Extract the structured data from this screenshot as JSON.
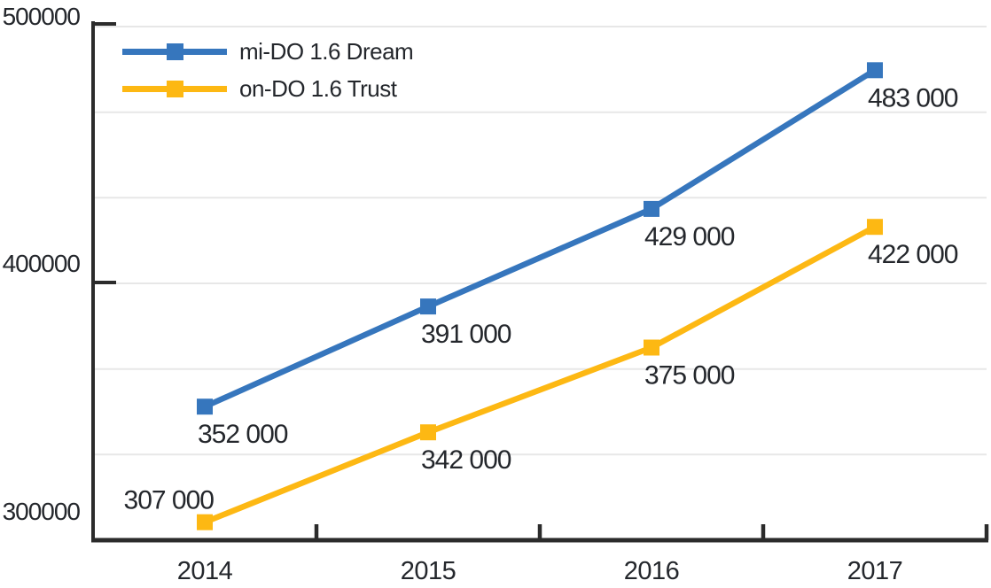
{
  "chart_data": {
    "type": "line",
    "title": "",
    "categories": [
      "2014",
      "2015",
      "2016",
      "2017"
    ],
    "series": [
      {
        "name": "mi-DO 1.6 Dream",
        "color": "#3676bd",
        "values": [
          352000,
          391000,
          429000,
          483000
        ],
        "point_labels": [
          "352 000",
          "391 000",
          "429 000",
          "483 000"
        ],
        "label_positions": [
          "below-right",
          "below-right",
          "below-right",
          "below-right"
        ]
      },
      {
        "name": "on-DO 1.6 Trust",
        "color": "#fdb813",
        "values": [
          307000,
          342000,
          375000,
          422000
        ],
        "point_labels": [
          "307 000",
          "342 000",
          "375 000",
          "422 000"
        ],
        "label_positions": [
          "above-left",
          "below-right",
          "below-right",
          "below-right"
        ]
      }
    ],
    "ylim": [
      300000,
      500000
    ],
    "y_ticks": [
      {
        "value": 500000,
        "label": "500000"
      },
      {
        "value": 400000,
        "label": "400000"
      },
      {
        "value": 300000,
        "label": "300000"
      }
    ],
    "gridline_values": [
      500000,
      466667,
      433333,
      400000,
      366667,
      333333
    ],
    "grid": true,
    "legend_position": "top-left",
    "marker": "square",
    "colors": {
      "axis": "#2b2b2b",
      "grid": "#e7e7e7",
      "text": "#24272c",
      "background": "#ffffff"
    }
  }
}
